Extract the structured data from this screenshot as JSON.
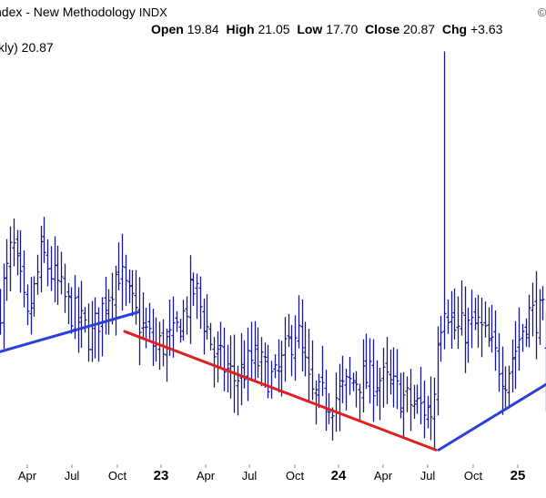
{
  "header": {
    "title": "ndex - New Methodology",
    "symbol": "INDX",
    "logo": "© Stoc",
    "open_label": "Open",
    "open_value": "19.84",
    "high_label": "High",
    "high_value": "21.05",
    "low_label": "Low",
    "low_value": "17.70",
    "close_label": "Close",
    "close_value": "20.87",
    "chg_label": "Chg",
    "chg_value": "+3.63"
  },
  "legend": {
    "text": "kly) 20.87"
  },
  "chart_data": {
    "type": "ohlc",
    "title": "",
    "xlabel": "",
    "ylabel": "",
    "x_tick_labels": [
      "Apr",
      "Jul",
      "Oct",
      "23",
      "Apr",
      "Jul",
      "Oct",
      "24",
      "Apr",
      "Jul",
      "Oct",
      "25"
    ],
    "bar_color": "#1a1a8c",
    "up_trend_color": "#2b3fdc",
    "down_trend_color": "#e02020",
    "y_axis_visible": false,
    "grid": false,
    "n_bars": 162,
    "series": [
      {
        "anchors_x": [
          0,
          14,
          30,
          46,
          76,
          100,
          118,
          130,
          148,
          170,
          190,
          214,
          236,
          258,
          280,
          302,
          326,
          342,
          366,
          390,
          420,
          450,
          476,
          482,
          490,
          500,
          526,
          556,
          580,
          600
        ],
        "anchors_close": [
          21.2,
          23.4,
          20.6,
          23.0,
          21.2,
          20.2,
          21.6,
          22.5,
          21.0,
          19.9,
          20.1,
          21.9,
          19.6,
          18.8,
          19.5,
          18.7,
          20.6,
          18.2,
          18.1,
          18.8,
          18.8,
          18.0,
          17.7,
          20.6,
          21.4,
          20.4,
          20.6,
          18.9,
          21.0,
          20.87
        ],
        "spike_high": 29.8,
        "final_bar": {
          "open": 19.84,
          "high": 21.05,
          "low": 17.7,
          "close": 20.87
        }
      }
    ],
    "trendlines": [
      {
        "color": "up",
        "from": [
          0,
          19.72
        ],
        "to": [
          152,
          21.05
        ]
      },
      {
        "color": "down",
        "from": [
          137,
          20.4
        ],
        "to": [
          479,
          16.42
        ]
      },
      {
        "color": "up",
        "from": [
          482,
          16.42
        ],
        "to": [
          600,
          18.62
        ]
      }
    ]
  }
}
